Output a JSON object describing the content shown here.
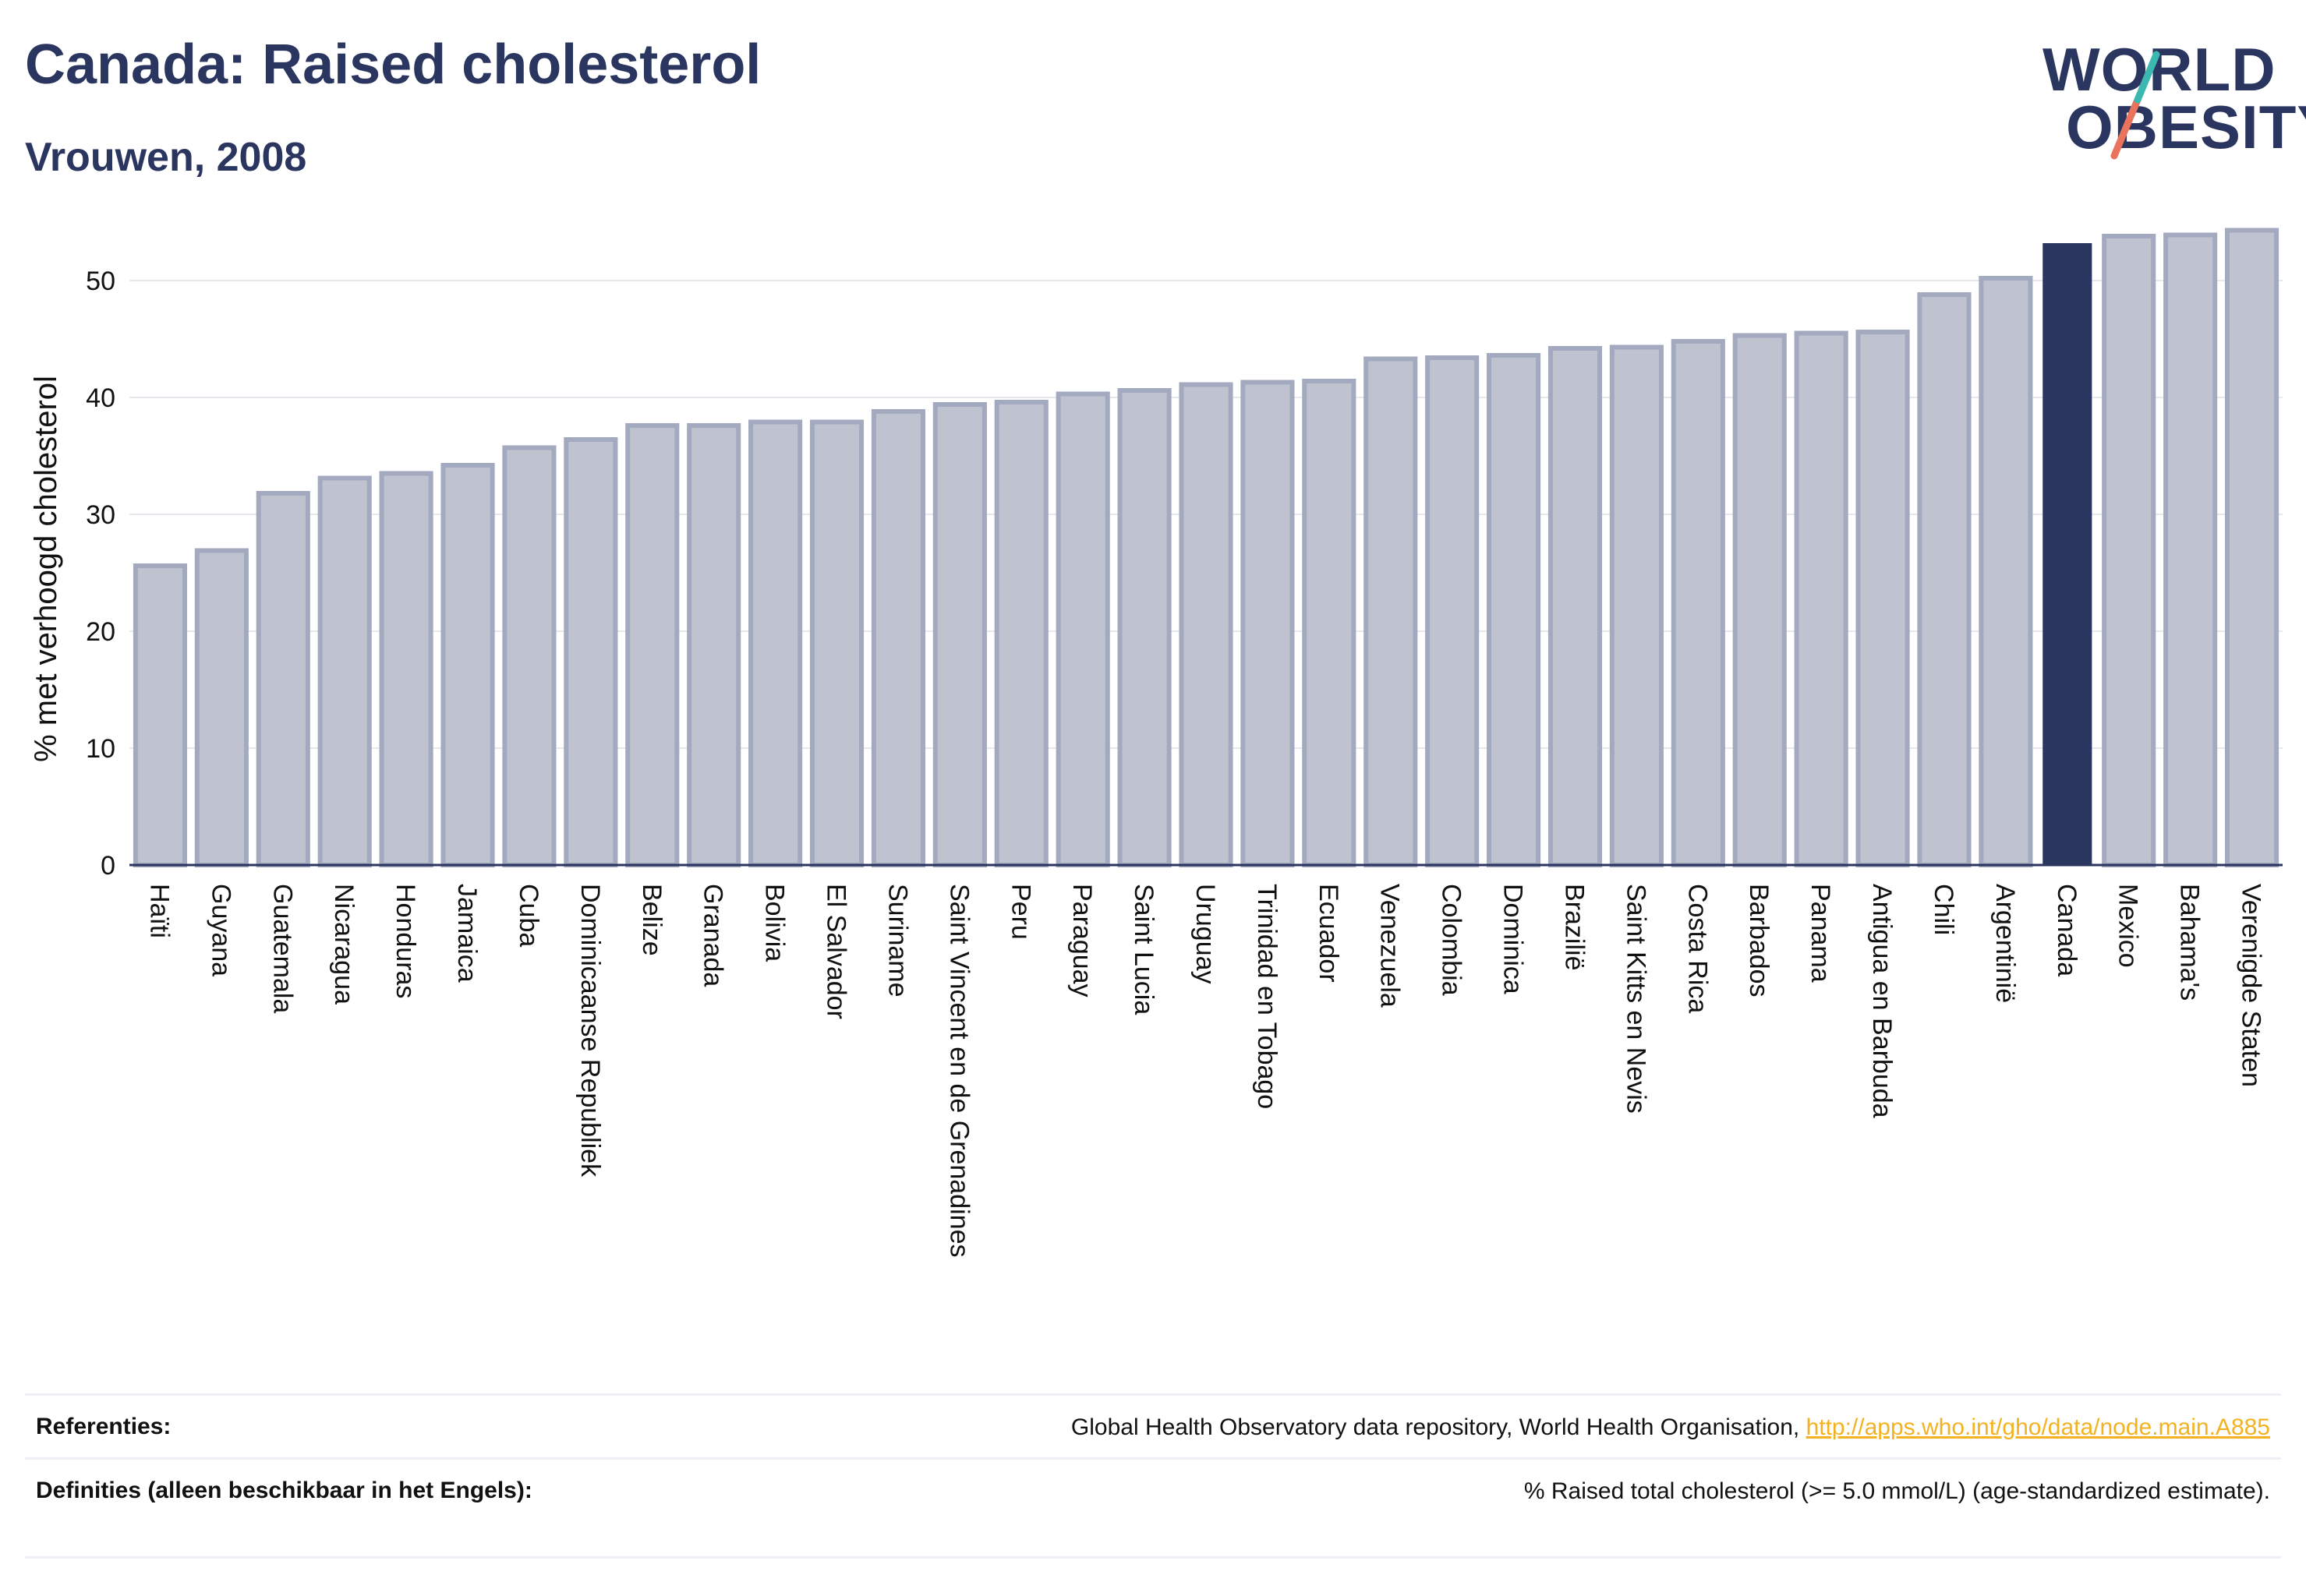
{
  "header": {
    "title": "Canada: Raised cholesterol",
    "subtitle": "Vrouwen, 2008"
  },
  "logo": {
    "line1": "WORLD",
    "line2": "OBESITY",
    "accent_colors": [
      "#3bb8b0",
      "#e9735d"
    ]
  },
  "chart_data": {
    "type": "bar",
    "ylabel": "% met verhoogd cholesterol",
    "ylim": [
      0,
      56
    ],
    "yticks": [
      0,
      10,
      20,
      30,
      40,
      50
    ],
    "grid": true,
    "highlight": "Canada",
    "colors": {
      "default": "#bfc3d0",
      "default_border": "#a3a9bf",
      "highlight": "#2b3660"
    },
    "categories": [
      "Haïti",
      "Guyana",
      "Guatemala",
      "Nicaragua",
      "Honduras",
      "Jamaica",
      "Cuba",
      "Dominicaanse Republiek",
      "Belize",
      "Granada",
      "Bolivia",
      "El Salvador",
      "Suriname",
      "Saint Vincent en de Grenadines",
      "Peru",
      "Paraguay",
      "Saint Lucia",
      "Uruguay",
      "Trinidad en Tobago",
      "Ecuador",
      "Venezuela",
      "Colombia",
      "Dominica",
      "Brazilië",
      "Saint Kitts en Nevis",
      "Costa Rica",
      "Barbados",
      "Panama",
      "Antigua en Barbuda",
      "Chili",
      "Argentinië",
      "Canada",
      "Mexico",
      "Bahama's",
      "Verenigde Staten"
    ],
    "values": [
      25.6,
      26.9,
      31.8,
      33.1,
      33.5,
      34.2,
      35.7,
      36.4,
      37.6,
      37.6,
      37.9,
      37.9,
      38.8,
      39.4,
      39.6,
      40.3,
      40.6,
      41.1,
      41.3,
      41.4,
      43.3,
      43.4,
      43.6,
      44.2,
      44.3,
      44.8,
      45.3,
      45.5,
      45.6,
      48.8,
      50.2,
      53.2,
      53.8,
      53.9,
      54.3
    ]
  },
  "footer": {
    "references_label": "Referenties:",
    "references_text": "Global Health Observatory data repository, World Health Organisation, ",
    "references_link": "http://apps.who.int/gho/data/node.main.A885",
    "definitions_label": "Definities (alleen beschikbaar in het Engels):",
    "definitions_text": "% Raised total cholesterol (>= 5.0 mmol/L) (age-standardized estimate)."
  }
}
